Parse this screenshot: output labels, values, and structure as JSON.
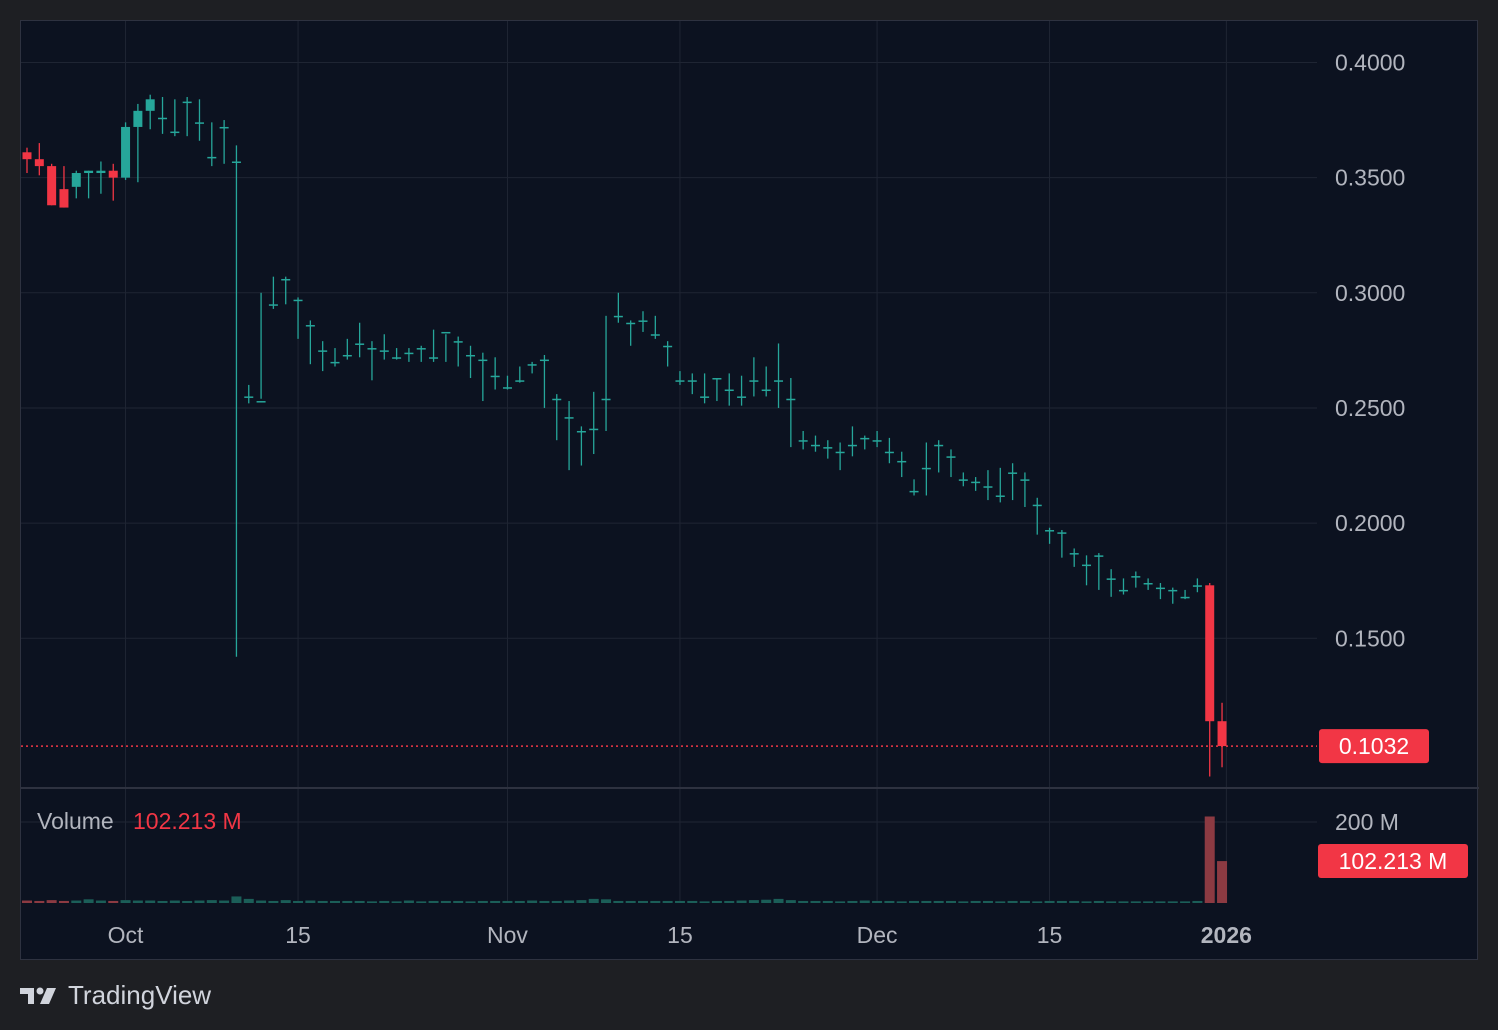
{
  "brand": {
    "name": "TradingView",
    "icon": "tradingview-logo-icon"
  },
  "colors": {
    "up": "#26a69a",
    "down": "#f23645",
    "background": "#0c1220",
    "grid": "#1f2533",
    "axis_text": "#b2b5be",
    "volume_up": "#1b5e58",
    "volume_down": "#8c3a42"
  },
  "price_scale": {
    "labels": [
      "0.4000",
      "0.3500",
      "0.3000",
      "0.2500",
      "0.2000",
      "0.1500"
    ],
    "last_price_label": "0.1032"
  },
  "volume_panel": {
    "label": "Volume",
    "value": "102.213 M",
    "scale_label": "200 M",
    "last_label": "102.213 M"
  },
  "time_axis": {
    "labels": [
      "Oct",
      "15",
      "Nov",
      "15",
      "Dec",
      "15",
      "2026"
    ]
  },
  "chart_data": {
    "type": "candlestick",
    "x": [
      "2025-09-23",
      "2025-09-24",
      "2025-09-25",
      "2025-09-26",
      "2025-09-27",
      "2025-09-28",
      "2025-09-29",
      "2025-09-30",
      "2025-10-01",
      "2025-10-02",
      "2025-10-03",
      "2025-10-04",
      "2025-10-05",
      "2025-10-06",
      "2025-10-07",
      "2025-10-08",
      "2025-10-09",
      "2025-10-10",
      "2025-10-11",
      "2025-10-12",
      "2025-10-13",
      "2025-10-14",
      "2025-10-15",
      "2025-10-16",
      "2025-10-17",
      "2025-10-18",
      "2025-10-19",
      "2025-10-20",
      "2025-10-21",
      "2025-10-22",
      "2025-10-23",
      "2025-10-24",
      "2025-10-25",
      "2025-10-26",
      "2025-10-27",
      "2025-10-28",
      "2025-10-29",
      "2025-10-30",
      "2025-10-31",
      "2025-11-01",
      "2025-11-02",
      "2025-11-03",
      "2025-11-04",
      "2025-11-05",
      "2025-11-06",
      "2025-11-07",
      "2025-11-08",
      "2025-11-09",
      "2025-11-10",
      "2025-11-11",
      "2025-11-12",
      "2025-11-13",
      "2025-11-14",
      "2025-11-15",
      "2025-11-16",
      "2025-11-17",
      "2025-11-18",
      "2025-11-19",
      "2025-11-20",
      "2025-11-21",
      "2025-11-22",
      "2025-11-23",
      "2025-11-24",
      "2025-11-25",
      "2025-11-26",
      "2025-11-27",
      "2025-11-28",
      "2025-11-29",
      "2025-11-30",
      "2025-12-01",
      "2025-12-02",
      "2025-12-03",
      "2025-12-04",
      "2025-12-05",
      "2025-12-06",
      "2025-12-07",
      "2025-12-08",
      "2025-12-09",
      "2025-12-10",
      "2025-12-11",
      "2025-12-12",
      "2025-12-13",
      "2025-12-14",
      "2025-12-15",
      "2025-12-16",
      "2025-12-17",
      "2025-12-18",
      "2025-12-19",
      "2025-12-20",
      "2025-12-21",
      "2025-12-22",
      "2025-12-23",
      "2025-12-24",
      "2025-12-25",
      "2025-12-26",
      "2025-12-27",
      "2025-12-28",
      "2025-12-29"
    ],
    "open": [
      0.361,
      0.358,
      0.355,
      0.345,
      0.346,
      0.352,
      0.352,
      0.353,
      0.35,
      0.372,
      0.379,
      0.376,
      0.37,
      0.383,
      0.374,
      0.359,
      0.372,
      0.357,
      0.255,
      0.253,
      0.295,
      0.306,
      0.297,
      0.286,
      0.275,
      0.27,
      0.273,
      0.278,
      0.276,
      0.275,
      0.272,
      0.274,
      0.276,
      0.272,
      0.283,
      0.279,
      0.273,
      0.271,
      0.264,
      0.259,
      0.262,
      0.269,
      0.271,
      0.254,
      0.246,
      0.24,
      0.241,
      0.254,
      0.29,
      0.287,
      0.288,
      0.282,
      0.277,
      0.262,
      0.262,
      0.255,
      0.263,
      0.258,
      0.255,
      0.262,
      0.258,
      0.262,
      0.254,
      0.236,
      0.234,
      0.233,
      0.231,
      0.234,
      0.237,
      0.236,
      0.231,
      0.227,
      0.214,
      0.224,
      0.234,
      0.229,
      0.219,
      0.218,
      0.216,
      0.212,
      0.222,
      0.219,
      0.208,
      0.197,
      0.196,
      0.187,
      0.182,
      0.186,
      0.176,
      0.171,
      0.177,
      0.174,
      0.172,
      0.171,
      0.168,
      0.173,
      0.173,
      0.114
    ],
    "high": [
      0.363,
      0.365,
      0.356,
      0.355,
      0.353,
      0.353,
      0.357,
      0.356,
      0.374,
      0.382,
      0.386,
      0.385,
      0.384,
      0.385,
      0.384,
      0.374,
      0.375,
      0.364,
      0.26,
      0.3,
      0.307,
      0.307,
      0.298,
      0.288,
      0.279,
      0.276,
      0.28,
      0.287,
      0.279,
      0.282,
      0.276,
      0.276,
      0.277,
      0.284,
      0.282,
      0.281,
      0.277,
      0.274,
      0.272,
      0.264,
      0.268,
      0.27,
      0.273,
      0.256,
      0.253,
      0.242,
      0.257,
      0.29,
      0.3,
      0.288,
      0.292,
      0.29,
      0.279,
      0.266,
      0.265,
      0.265,
      0.263,
      0.265,
      0.264,
      0.272,
      0.268,
      0.278,
      0.263,
      0.24,
      0.238,
      0.236,
      0.235,
      0.242,
      0.238,
      0.24,
      0.237,
      0.231,
      0.219,
      0.235,
      0.236,
      0.232,
      0.222,
      0.22,
      0.223,
      0.224,
      0.226,
      0.222,
      0.211,
      0.198,
      0.197,
      0.189,
      0.186,
      0.187,
      0.18,
      0.176,
      0.179,
      0.176,
      0.174,
      0.172,
      0.171,
      0.176,
      0.174,
      0.122
    ],
    "low": [
      0.352,
      0.351,
      0.338,
      0.337,
      0.341,
      0.341,
      0.343,
      0.34,
      0.349,
      0.348,
      0.371,
      0.369,
      0.368,
      0.368,
      0.366,
      0.355,
      0.356,
      0.142,
      0.252,
      0.254,
      0.293,
      0.295,
      0.28,
      0.269,
      0.266,
      0.268,
      0.271,
      0.272,
      0.262,
      0.271,
      0.271,
      0.27,
      0.27,
      0.27,
      0.27,
      0.268,
      0.263,
      0.253,
      0.258,
      0.258,
      0.261,
      0.265,
      0.25,
      0.236,
      0.223,
      0.225,
      0.23,
      0.24,
      0.287,
      0.277,
      0.283,
      0.28,
      0.268,
      0.26,
      0.256,
      0.252,
      0.253,
      0.251,
      0.251,
      0.255,
      0.255,
      0.25,
      0.233,
      0.232,
      0.231,
      0.228,
      0.223,
      0.229,
      0.232,
      0.233,
      0.226,
      0.22,
      0.212,
      0.212,
      0.222,
      0.22,
      0.216,
      0.214,
      0.21,
      0.209,
      0.21,
      0.207,
      0.195,
      0.191,
      0.185,
      0.181,
      0.173,
      0.171,
      0.168,
      0.169,
      0.172,
      0.171,
      0.167,
      0.165,
      0.167,
      0.17,
      0.09,
      0.094
    ],
    "close": [
      0.358,
      0.355,
      0.338,
      0.337,
      0.352,
      0.353,
      0.353,
      0.35,
      0.372,
      0.379,
      0.384,
      0.376,
      0.37,
      0.383,
      0.374,
      0.359,
      0.372,
      0.357,
      0.255,
      0.253,
      0.295,
      0.306,
      0.297,
      0.286,
      0.275,
      0.27,
      0.273,
      0.278,
      0.276,
      0.275,
      0.272,
      0.274,
      0.276,
      0.272,
      0.283,
      0.279,
      0.273,
      0.271,
      0.264,
      0.259,
      0.262,
      0.269,
      0.271,
      0.254,
      0.246,
      0.24,
      0.241,
      0.254,
      0.29,
      0.287,
      0.288,
      0.282,
      0.277,
      0.262,
      0.262,
      0.255,
      0.263,
      0.258,
      0.255,
      0.262,
      0.258,
      0.262,
      0.254,
      0.236,
      0.234,
      0.233,
      0.231,
      0.234,
      0.237,
      0.236,
      0.231,
      0.227,
      0.214,
      0.224,
      0.234,
      0.229,
      0.219,
      0.218,
      0.216,
      0.212,
      0.222,
      0.219,
      0.208,
      0.197,
      0.196,
      0.187,
      0.182,
      0.186,
      0.176,
      0.171,
      0.177,
      0.174,
      0.172,
      0.171,
      0.168,
      0.173,
      0.114,
      0.1032
    ],
    "volume_m": [
      6,
      5,
      7,
      5,
      6,
      9,
      6,
      5,
      7,
      6,
      6,
      5,
      6,
      5,
      6,
      7,
      6,
      16,
      10,
      6,
      5,
      7,
      5,
      6,
      5,
      5,
      5,
      5,
      4,
      5,
      4,
      6,
      4,
      5,
      5,
      5,
      4,
      5,
      5,
      5,
      5,
      6,
      5,
      5,
      6,
      7,
      10,
      9,
      5,
      5,
      5,
      5,
      5,
      5,
      5,
      4,
      5,
      5,
      6,
      7,
      8,
      10,
      7,
      5,
      5,
      5,
      4,
      5,
      6,
      5,
      5,
      4,
      5,
      5,
      5,
      5,
      4,
      5,
      5,
      4,
      5,
      5,
      4,
      5,
      5,
      5,
      4,
      5,
      4,
      4,
      4,
      4,
      4,
      4,
      4,
      5,
      211,
      102.213
    ],
    "y_range": [
      0.085,
      0.418
    ],
    "volume_scale_max_m": 200,
    "grid": true
  }
}
